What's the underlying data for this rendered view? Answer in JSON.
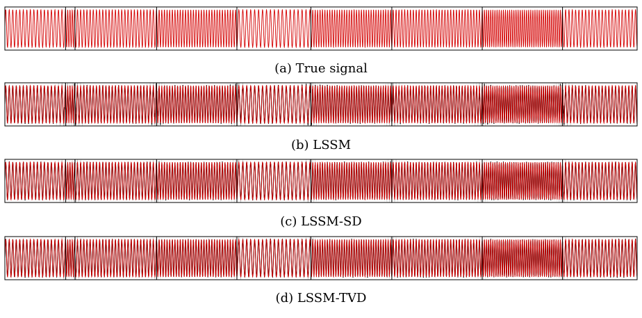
{
  "figure": {
    "panels": [
      {
        "caption": "(a) True signal",
        "show_estimate": false,
        "uncertainty": 0.0,
        "noise": 0.0
      },
      {
        "caption": "(b) LSSM",
        "show_estimate": true,
        "uncertainty": 0.9,
        "noise": 0.22
      },
      {
        "caption": "(c) LSSM-SD",
        "show_estimate": true,
        "uncertainty": 0.45,
        "noise": 0.14
      },
      {
        "caption": "(d) LSSM-TVD",
        "show_estimate": true,
        "uncertainty": 0.3,
        "noise": 0.1
      }
    ]
  },
  "chart_data": {
    "type": "line",
    "x_range": [
      0,
      1000
    ],
    "y_range": [
      -1,
      1
    ],
    "regime_boundaries": [
      96,
      111,
      240,
      367,
      484,
      612,
      755,
      882
    ],
    "segment_cycles_per_unit": [
      0.18,
      0.28,
      0.2,
      0.24,
      0.16,
      0.26,
      0.22,
      0.3,
      0.19
    ],
    "series_colors": {
      "true_signal": "#d40000",
      "estimate": "#000000",
      "uncertainty_band": "#9a9a9a"
    },
    "grid": false
  }
}
